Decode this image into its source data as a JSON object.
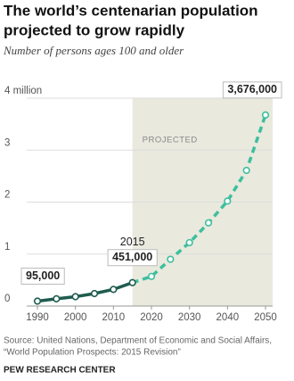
{
  "chart_data": {
    "type": "line",
    "title": [
      "The world’s centenarian population",
      "projected to grow rapidly"
    ],
    "subtitle": "Number of persons ages 100 and older",
    "x": [
      1990,
      1995,
      2000,
      2005,
      2010,
      2015,
      2020,
      2025,
      2030,
      2035,
      2040,
      2045,
      2050
    ],
    "series": [
      {
        "color": "#1e5c4f",
        "projected_color": "#3dbf9d",
        "values": [
          0.095,
          0.14,
          0.18,
          0.24,
          0.32,
          0.451,
          0.57,
          0.9,
          1.22,
          1.6,
          2.02,
          2.61,
          3.676
        ],
        "value_labels": [
          "95,000",
          null,
          null,
          null,
          null,
          "451,000",
          null,
          null,
          null,
          null,
          null,
          null,
          "3,676,000"
        ]
      }
    ],
    "projection": {
      "label": "PROJECTED",
      "start": 2015,
      "color": "#e9e9de"
    },
    "xlim": [
      1990,
      2050
    ],
    "xticks": [
      1990,
      2000,
      2010,
      2020,
      2030,
      2040,
      2050
    ],
    "ylim": [
      0,
      4
    ],
    "yticks": [
      0,
      1,
      2,
      3,
      {
        "value": 4,
        "label": "4 million"
      }
    ],
    "grid": true,
    "source": [
      "Source: United Nations, Department of Economic and Social Affairs,",
      "“World Population Prospects: 2015 Revision”"
    ],
    "brand": "PEW RESEARCH CENTER"
  }
}
